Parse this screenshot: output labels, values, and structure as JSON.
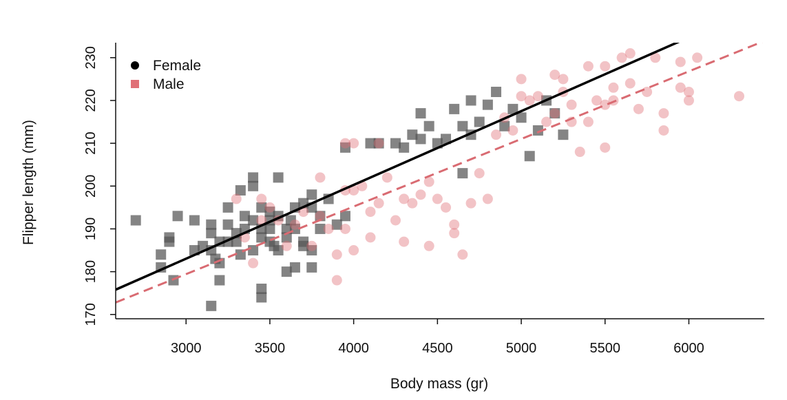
{
  "chart_data": {
    "type": "scatter",
    "xlabel": "Body mass (gr)",
    "ylabel": "Flipper length (mm)",
    "xlim": [
      2580,
      6450
    ],
    "ylim": [
      169,
      233.5
    ],
    "x_ticks": [
      3000,
      3500,
      4000,
      4500,
      5000,
      5500,
      6000
    ],
    "y_ticks": [
      170,
      180,
      190,
      200,
      210,
      220,
      230
    ],
    "legend": {
      "position": "top-left",
      "entries": [
        "Female",
        "Male"
      ]
    },
    "series": [
      {
        "name": "Female",
        "marker": "square",
        "color": "#555555",
        "points": [
          [
            2700,
            192
          ],
          [
            2850,
            184
          ],
          [
            2850,
            181
          ],
          [
            2900,
            187
          ],
          [
            2900,
            188
          ],
          [
            2925,
            178
          ],
          [
            2950,
            193
          ],
          [
            3050,
            185
          ],
          [
            3050,
            192
          ],
          [
            3100,
            186
          ],
          [
            3150,
            191
          ],
          [
            3150,
            189
          ],
          [
            3150,
            185
          ],
          [
            3175,
            183
          ],
          [
            3150,
            172
          ],
          [
            3200,
            187
          ],
          [
            3200,
            182
          ],
          [
            3250,
            187
          ],
          [
            3250,
            195
          ],
          [
            3250,
            191
          ],
          [
            3300,
            189
          ],
          [
            3300,
            187
          ],
          [
            3325,
            199
          ],
          [
            3325,
            184
          ],
          [
            3350,
            193
          ],
          [
            3350,
            190
          ],
          [
            3400,
            202
          ],
          [
            3400,
            200
          ],
          [
            3400,
            192
          ],
          [
            3400,
            185
          ],
          [
            3450,
            190
          ],
          [
            3450,
            188
          ],
          [
            3450,
            195
          ],
          [
            3450,
            176
          ],
          [
            3450,
            174
          ],
          [
            3500,
            194
          ],
          [
            3500,
            192
          ],
          [
            3500,
            190
          ],
          [
            3500,
            187
          ],
          [
            3550,
            185
          ],
          [
            3550,
            193
          ],
          [
            3550,
            202
          ],
          [
            3600,
            190
          ],
          [
            3600,
            188
          ],
          [
            3600,
            180
          ],
          [
            3650,
            190
          ],
          [
            3650,
            195
          ],
          [
            3650,
            181
          ],
          [
            3700,
            187
          ],
          [
            3700,
            186
          ],
          [
            3700,
            196
          ],
          [
            3750,
            195
          ],
          [
            3750,
            198
          ],
          [
            3750,
            181
          ],
          [
            3800,
            190
          ],
          [
            3800,
            193
          ],
          [
            3850,
            197
          ],
          [
            3900,
            191
          ],
          [
            3950,
            193
          ],
          [
            3950,
            209
          ],
          [
            4100,
            210
          ],
          [
            4150,
            210
          ],
          [
            4250,
            210
          ],
          [
            4300,
            209
          ],
          [
            4350,
            212
          ],
          [
            4400,
            217
          ],
          [
            4400,
            211
          ],
          [
            4450,
            214
          ],
          [
            4500,
            210
          ],
          [
            4550,
            211
          ],
          [
            4600,
            218
          ],
          [
            4650,
            214
          ],
          [
            4700,
            220
          ],
          [
            4700,
            212
          ],
          [
            4750,
            215
          ],
          [
            4800,
            219
          ],
          [
            4850,
            222
          ],
          [
            4900,
            214
          ],
          [
            4950,
            218
          ],
          [
            5000,
            216
          ],
          [
            5050,
            207
          ],
          [
            5100,
            213
          ],
          [
            5150,
            220
          ],
          [
            5200,
            217
          ],
          [
            5250,
            212
          ],
          [
            3750,
            185
          ],
          [
            3625,
            192
          ],
          [
            3525,
            186
          ],
          [
            4650,
            203
          ],
          [
            3200,
            178
          ]
        ]
      },
      {
        "name": "Male",
        "marker": "circle",
        "color": "#e07077",
        "points": [
          [
            3300,
            197
          ],
          [
            3350,
            188
          ],
          [
            3400,
            182
          ],
          [
            3450,
            197
          ],
          [
            3500,
            195
          ],
          [
            3550,
            192
          ],
          [
            3600,
            186
          ],
          [
            3650,
            191
          ],
          [
            3700,
            194
          ],
          [
            3750,
            186
          ],
          [
            3800,
            193
          ],
          [
            3800,
            202
          ],
          [
            3850,
            190
          ],
          [
            3900,
            178
          ],
          [
            3900,
            184
          ],
          [
            3950,
            190
          ],
          [
            3950,
            199
          ],
          [
            3950,
            210
          ],
          [
            4000,
            199
          ],
          [
            4000,
            210
          ],
          [
            4050,
            200
          ],
          [
            4100,
            194
          ],
          [
            4100,
            188
          ],
          [
            4150,
            196
          ],
          [
            4150,
            210
          ],
          [
            4200,
            202
          ],
          [
            4250,
            192
          ],
          [
            4300,
            187
          ],
          [
            4300,
            197
          ],
          [
            4350,
            196
          ],
          [
            4400,
            198
          ],
          [
            4450,
            186
          ],
          [
            4450,
            201
          ],
          [
            4500,
            197
          ],
          [
            4550,
            195
          ],
          [
            4600,
            191
          ],
          [
            4600,
            189
          ],
          [
            4650,
            184
          ],
          [
            4700,
            196
          ],
          [
            4750,
            203
          ],
          [
            4800,
            197
          ],
          [
            4850,
            212
          ],
          [
            4900,
            216
          ],
          [
            4950,
            213
          ],
          [
            5000,
            225
          ],
          [
            5000,
            221
          ],
          [
            5050,
            220
          ],
          [
            5100,
            221
          ],
          [
            5150,
            215
          ],
          [
            5200,
            226
          ],
          [
            5200,
            217
          ],
          [
            5250,
            225
          ],
          [
            5250,
            222
          ],
          [
            5300,
            219
          ],
          [
            5300,
            215
          ],
          [
            5350,
            208
          ],
          [
            5400,
            228
          ],
          [
            5400,
            215
          ],
          [
            5450,
            220
          ],
          [
            5500,
            228
          ],
          [
            5500,
            219
          ],
          [
            5550,
            223
          ],
          [
            5550,
            220
          ],
          [
            5600,
            230
          ],
          [
            5650,
            231
          ],
          [
            5650,
            224
          ],
          [
            5700,
            218
          ],
          [
            5750,
            222
          ],
          [
            5800,
            230
          ],
          [
            5850,
            217
          ],
          [
            5850,
            213
          ],
          [
            5950,
            229
          ],
          [
            5950,
            223
          ],
          [
            6000,
            222
          ],
          [
            6000,
            220
          ],
          [
            6050,
            230
          ],
          [
            6300,
            221
          ],
          [
            5500,
            209
          ],
          [
            4000,
            185
          ],
          [
            3450,
            192
          ]
        ]
      }
    ],
    "fit_lines": [
      {
        "series": "Female",
        "style": "solid",
        "color": "#000000",
        "points": [
          [
            2580,
            175.8
          ],
          [
            6450,
            242.5
          ]
        ]
      },
      {
        "series": "Male",
        "style": "dashed",
        "color": "#d96b72",
        "points": [
          [
            2580,
            172.8
          ],
          [
            6450,
            233.9
          ]
        ]
      }
    ]
  }
}
